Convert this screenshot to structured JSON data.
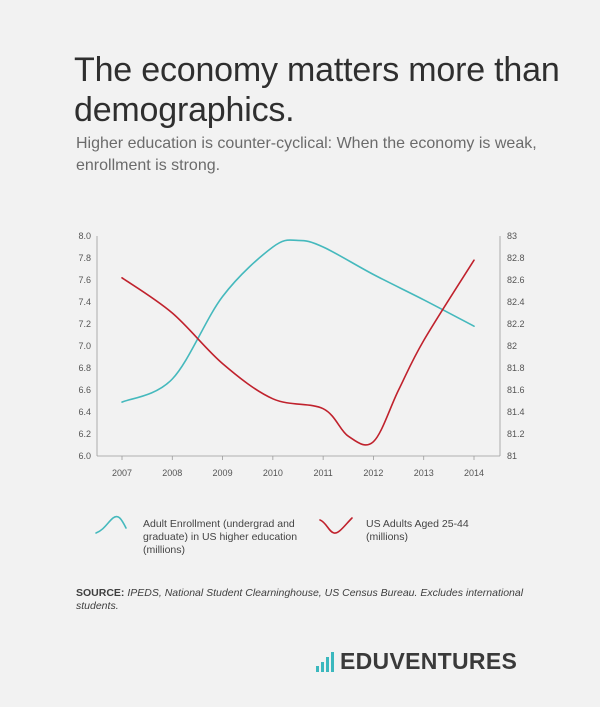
{
  "title": "The economy matters more than demographics.",
  "subtitle": "Higher education is counter-cyclical: When the economy is weak, enrollment is strong.",
  "chart_data": {
    "type": "line",
    "x_tick_labels": [
      "2007",
      "2008",
      "2009",
      "2010",
      "2011",
      "2012",
      "2013",
      "2014"
    ],
    "y_left": {
      "range": [
        6.0,
        8.0
      ],
      "ticks": [
        "6.0",
        "6.2",
        "6.4",
        "6.6",
        "6.8",
        "7.0",
        "7.2",
        "7.4",
        "7.6",
        "7.8",
        "8.0"
      ]
    },
    "y_right": {
      "range": [
        81,
        83
      ],
      "ticks": [
        "81",
        "81.2",
        "81.4",
        "81.6",
        "81.8",
        "82",
        "82.2",
        "82.4",
        "82.6",
        "82.8",
        "83"
      ]
    },
    "series": [
      {
        "name": "Adult Enrollment (undergrad and graduate) in US higher education (millions)",
        "axis": "left",
        "color": "#45b9bd",
        "x": [
          2007,
          2008,
          2009,
          2010,
          2010.5,
          2011,
          2012,
          2013,
          2014
        ],
        "values": [
          6.49,
          6.7,
          7.45,
          7.9,
          7.96,
          7.9,
          7.65,
          7.42,
          7.18
        ]
      },
      {
        "name": "US Adults Aged 25-44 (millions)",
        "axis": "right",
        "color": "#c0222d",
        "x": [
          2007,
          2008,
          2009,
          2010,
          2011,
          2011.5,
          2012,
          2012.5,
          2013,
          2014
        ],
        "values": [
          82.62,
          82.3,
          81.84,
          81.52,
          81.43,
          81.18,
          81.13,
          81.6,
          82.05,
          82.78
        ]
      }
    ],
    "legend": [
      {
        "label": "Adult Enrollment (undergrad and graduate) in US higher education (millions)",
        "color": "#45b9bd"
      },
      {
        "label": "US Adults Aged 25-44 (millions)",
        "color": "#c0222d"
      }
    ],
    "legend_position": "bottom",
    "grid": false
  },
  "source": {
    "label": "SOURCE:",
    "text": "IPEDS, National Student Clearninghouse, US Census Bureau. Excludes international students."
  },
  "logo": {
    "text": "EDUVENTURES",
    "color": "#3bb8be"
  }
}
